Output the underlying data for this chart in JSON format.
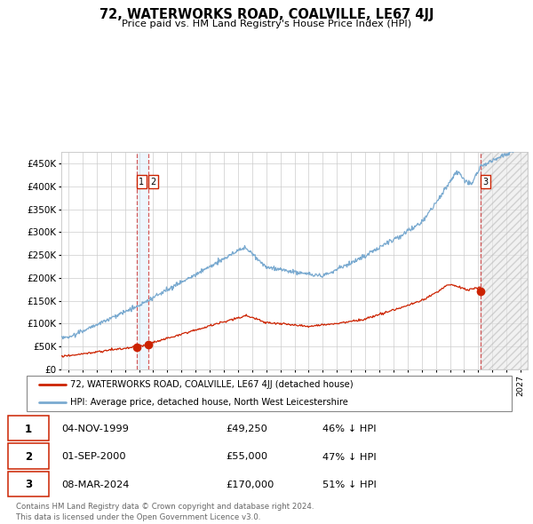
{
  "title": "72, WATERWORKS ROAD, COALVILLE, LE67 4JJ",
  "subtitle": "Price paid vs. HM Land Registry's House Price Index (HPI)",
  "ylabel_ticks": [
    "£0",
    "£50K",
    "£100K",
    "£150K",
    "£200K",
    "£250K",
    "£300K",
    "£350K",
    "£400K",
    "£450K"
  ],
  "ytick_values": [
    0,
    50000,
    100000,
    150000,
    200000,
    250000,
    300000,
    350000,
    400000,
    450000
  ],
  "ylim": [
    0,
    475000
  ],
  "xlim_start": 1994.5,
  "xlim_end": 2027.5,
  "hpi_color": "#7aaad0",
  "price_color": "#cc2200",
  "vline_color": "#cc3333",
  "grid_color": "#cccccc",
  "bg_color": "#ffffff",
  "hatch_start": 2024.18,
  "transactions": [
    {
      "date_num": 1999.84,
      "price": 49250,
      "label": "1"
    },
    {
      "date_num": 2000.67,
      "price": 55000,
      "label": "2"
    },
    {
      "date_num": 2024.18,
      "price": 170000,
      "label": "3"
    }
  ],
  "legend_entries": [
    "72, WATERWORKS ROAD, COALVILLE, LE67 4JJ (detached house)",
    "HPI: Average price, detached house, North West Leicestershire"
  ],
  "footer": "Contains HM Land Registry data © Crown copyright and database right 2024.\nThis data is licensed under the Open Government Licence v3.0.",
  "table_rows": [
    [
      "1",
      "04-NOV-1999",
      "£49,250",
      "46% ↓ HPI"
    ],
    [
      "2",
      "01-SEP-2000",
      "£55,000",
      "47% ↓ HPI"
    ],
    [
      "3",
      "08-MAR-2024",
      "£170,000",
      "51% ↓ HPI"
    ]
  ]
}
